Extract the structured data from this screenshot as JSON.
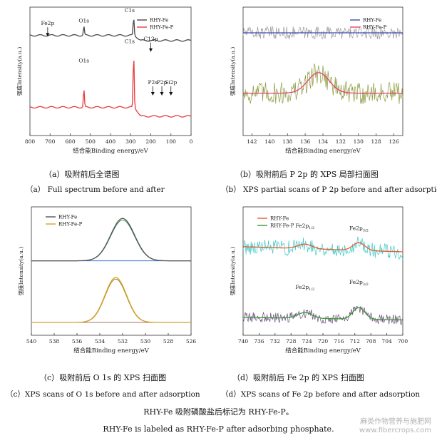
{
  "chart_data": [
    {
      "id": "a",
      "type": "line",
      "xlabel": "结合能Binding energy/eV",
      "ylabel": "强度Intensity(a.u.)",
      "x_ticks": [
        800,
        700,
        600,
        500,
        400,
        300,
        200,
        100,
        0
      ],
      "xlim": [
        800,
        0
      ],
      "ylim": [
        0,
        100
      ],
      "legend": {
        "position": "top-right"
      },
      "series": [
        {
          "name": "RHY-Fe",
          "color": "#4a4a4a",
          "baseline": 78,
          "low": 74,
          "peaks": [
            {
              "x": 532,
              "h": 7,
              "w": 2.5
            },
            {
              "x": 285,
              "h": 14,
              "w": 2.5
            }
          ]
        },
        {
          "name": "RHY-Fe-P",
          "color": "#e83a3a",
          "baseline": 22,
          "low": 15,
          "peaks": [
            {
              "x": 532,
              "h": 14,
              "w": 2.5
            },
            {
              "x": 285,
              "h": 42,
              "w": 2.5
            }
          ]
        }
      ],
      "annotations": [
        {
          "text": "Fe2p",
          "x": 712,
          "y": 86,
          "arrow": true
        },
        {
          "text": "O1s",
          "x": 532,
          "y": 88,
          "arrow": false
        },
        {
          "text": "C1s",
          "x": 305,
          "y": 96,
          "arrow": false
        },
        {
          "text": "C12p",
          "x": 200,
          "y": 74,
          "arrow": true
        },
        {
          "text": "O1s",
          "x": 532,
          "y": 57,
          "arrow": false
        },
        {
          "text": "C1s",
          "x": 305,
          "y": 72,
          "arrow": false
        },
        {
          "text": "P2s",
          "x": 190,
          "y": 40,
          "arrow": true
        },
        {
          "text": "P2p",
          "x": 145,
          "y": 40,
          "arrow": true
        },
        {
          "text": "Si2p",
          "x": 100,
          "y": 40,
          "arrow": true
        }
      ]
    },
    {
      "id": "b",
      "type": "line",
      "xlabel": "结合能Binding energy/eV",
      "ylabel": "强度Intensity(a.u.)",
      "x_ticks": [
        142,
        140,
        138,
        136,
        134,
        132,
        130,
        128,
        126
      ],
      "xlim": [
        143,
        125
      ],
      "ylim": [
        0,
        100
      ],
      "legend": {
        "position": "top-right"
      },
      "series": [
        {
          "name": "RHY-Fe",
          "color": "#3f4db8",
          "raw_color": "#9a9a9a",
          "baseline": 80,
          "noise": 5,
          "peaks": []
        },
        {
          "name": "RHY-Fe-P",
          "color": "#e8407a",
          "raw_color": "#8a9a3c",
          "baseline": 33,
          "noise": 9,
          "peaks": [
            {
              "x": 134.5,
              "h": 16,
              "w": 1.2
            }
          ]
        }
      ]
    },
    {
      "id": "c",
      "type": "line",
      "xlabel": "结合能Binding energy/eV",
      "ylabel": "强度Intensity(a.u.)",
      "x_ticks": [
        540,
        538,
        536,
        534,
        532,
        530,
        528,
        526
      ],
      "xlim": [
        540,
        526
      ],
      "ylim": [
        0,
        100
      ],
      "legend": {
        "position": "top-left"
      },
      "series": [
        {
          "name": "RHY-Fe",
          "color": "#555555",
          "fit_color": "#3a8f5a",
          "bg_color": "#3a6fd8",
          "baseline": 58,
          "peaks": [
            {
              "x": 532,
              "h": 33,
              "w": 1.05
            }
          ]
        },
        {
          "name": "RHY-Fe-P",
          "color": "#d4a528",
          "fit_color": "#a08020",
          "bg_color": "#a07a6a",
          "baseline": 10,
          "peaks": [
            {
              "x": 532.6,
              "h": 35,
              "w": 0.95
            }
          ]
        }
      ]
    },
    {
      "id": "d",
      "type": "line",
      "xlabel": "结合能Binding energy/eV",
      "ylabel": "强度Intensity(a.u.)",
      "x_ticks": [
        740,
        736,
        732,
        728,
        724,
        720,
        716,
        712,
        708,
        704,
        700
      ],
      "xlim": [
        740,
        700
      ],
      "ylim": [
        0,
        100
      ],
      "legend": {
        "position": "top-left"
      },
      "series": [
        {
          "name": "RHY-Fe",
          "color": "#e85a2a",
          "raw_color": "#3fc8c8",
          "baseline": 65,
          "slope": 0.1,
          "noise": 6,
          "peaks": [
            {
              "x": 724.5,
              "h": 3.5,
              "w": 1.8
            },
            {
              "x": 711,
              "h": 6,
              "w": 1.5
            }
          ]
        },
        {
          "name": "RHY-Fe-P",
          "color": "#3a9a3a",
          "raw_color": "#6a4a7a",
          "baseline": 12,
          "slope": 0.05,
          "noise": 4,
          "peaks": [
            {
              "x": 724.5,
              "h": 4.5,
              "w": 1.8
            },
            {
              "x": 711,
              "h": 9,
              "w": 1.5
            }
          ]
        }
      ],
      "annotations": [
        {
          "text": "Fe2p",
          "sub": "1/2",
          "x": 724.5,
          "y": 84
        },
        {
          "text": "Fe2p",
          "sub": "3/2",
          "x": 711,
          "y": 82
        },
        {
          "text": "Fe2p",
          "sub": "1/2",
          "x": 724.5,
          "y": 36
        },
        {
          "text": "Fe2p",
          "sub": "3/2",
          "x": 711,
          "y": 40
        }
      ]
    }
  ],
  "captions": {
    "a_cn": "（a）吸附前后全谱图",
    "a_en": "（a） Full spectrum before and after",
    "b_cn": "（b）吸附前后 P 2p 的 XPS 局部扫面图",
    "b_en": "（b）  XPS partial scans of P 2p before and after adsorption",
    "c_cn": "（c）吸附前后 O 1s 的 XPS 扫面图",
    "c_en": "（c）XPS scans of O 1s before and after adsorption",
    "d_cn": "（d）吸附前后 Fe 2p 的 XPS 扫面图",
    "d_en": "（d）XPS scans of Fe 2p before and after adsorption"
  },
  "footer": {
    "cn": "RHY-Fe 吸附磷酸盐后标记为 RHY-Fe-P。",
    "en": "RHY-Fe is labeled as RHY-Fe-P after adsorbing phosphate."
  },
  "watermark": {
    "line1": "麻类作物营养与施肥网",
    "line2": "www.fibercrops.com"
  }
}
